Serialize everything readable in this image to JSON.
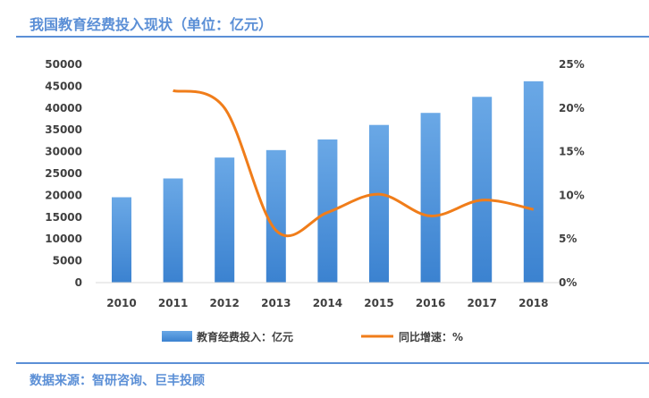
{
  "title": "我国教育经费投入现状（单位：亿元）",
  "source": "数据来源：智研咨询、巨丰投顾",
  "colors": {
    "bar": "#4a90d9",
    "line": "#f07d1a",
    "title": "#5b8fd6"
  },
  "chart_data": {
    "type": "bar+line",
    "categories": [
      "2010",
      "2011",
      "2012",
      "2013",
      "2014",
      "2015",
      "2016",
      "2017",
      "2018"
    ],
    "series": [
      {
        "name": "教育经费投入：亿元",
        "type": "bar",
        "axis": "left",
        "values": [
          19562,
          23869,
          28655,
          30365,
          32806,
          36129,
          38888,
          42562,
          46135
        ]
      },
      {
        "name": "同比增速：%",
        "type": "line",
        "axis": "right",
        "values": [
          null,
          22.0,
          20.0,
          5.97,
          8.04,
          10.13,
          7.64,
          9.45,
          8.39
        ]
      }
    ],
    "left_axis": {
      "ylim": [
        0,
        50000
      ],
      "ticks": [
        "0",
        "5000",
        "10000",
        "15000",
        "20000",
        "25000",
        "30000",
        "35000",
        "40000",
        "45000",
        "50000"
      ]
    },
    "right_axis": {
      "ylim": [
        0,
        25
      ],
      "ticks": [
        "0%",
        "5%",
        "10%",
        "15%",
        "20%",
        "25%"
      ]
    },
    "legend_position": "bottom",
    "grid": false
  }
}
